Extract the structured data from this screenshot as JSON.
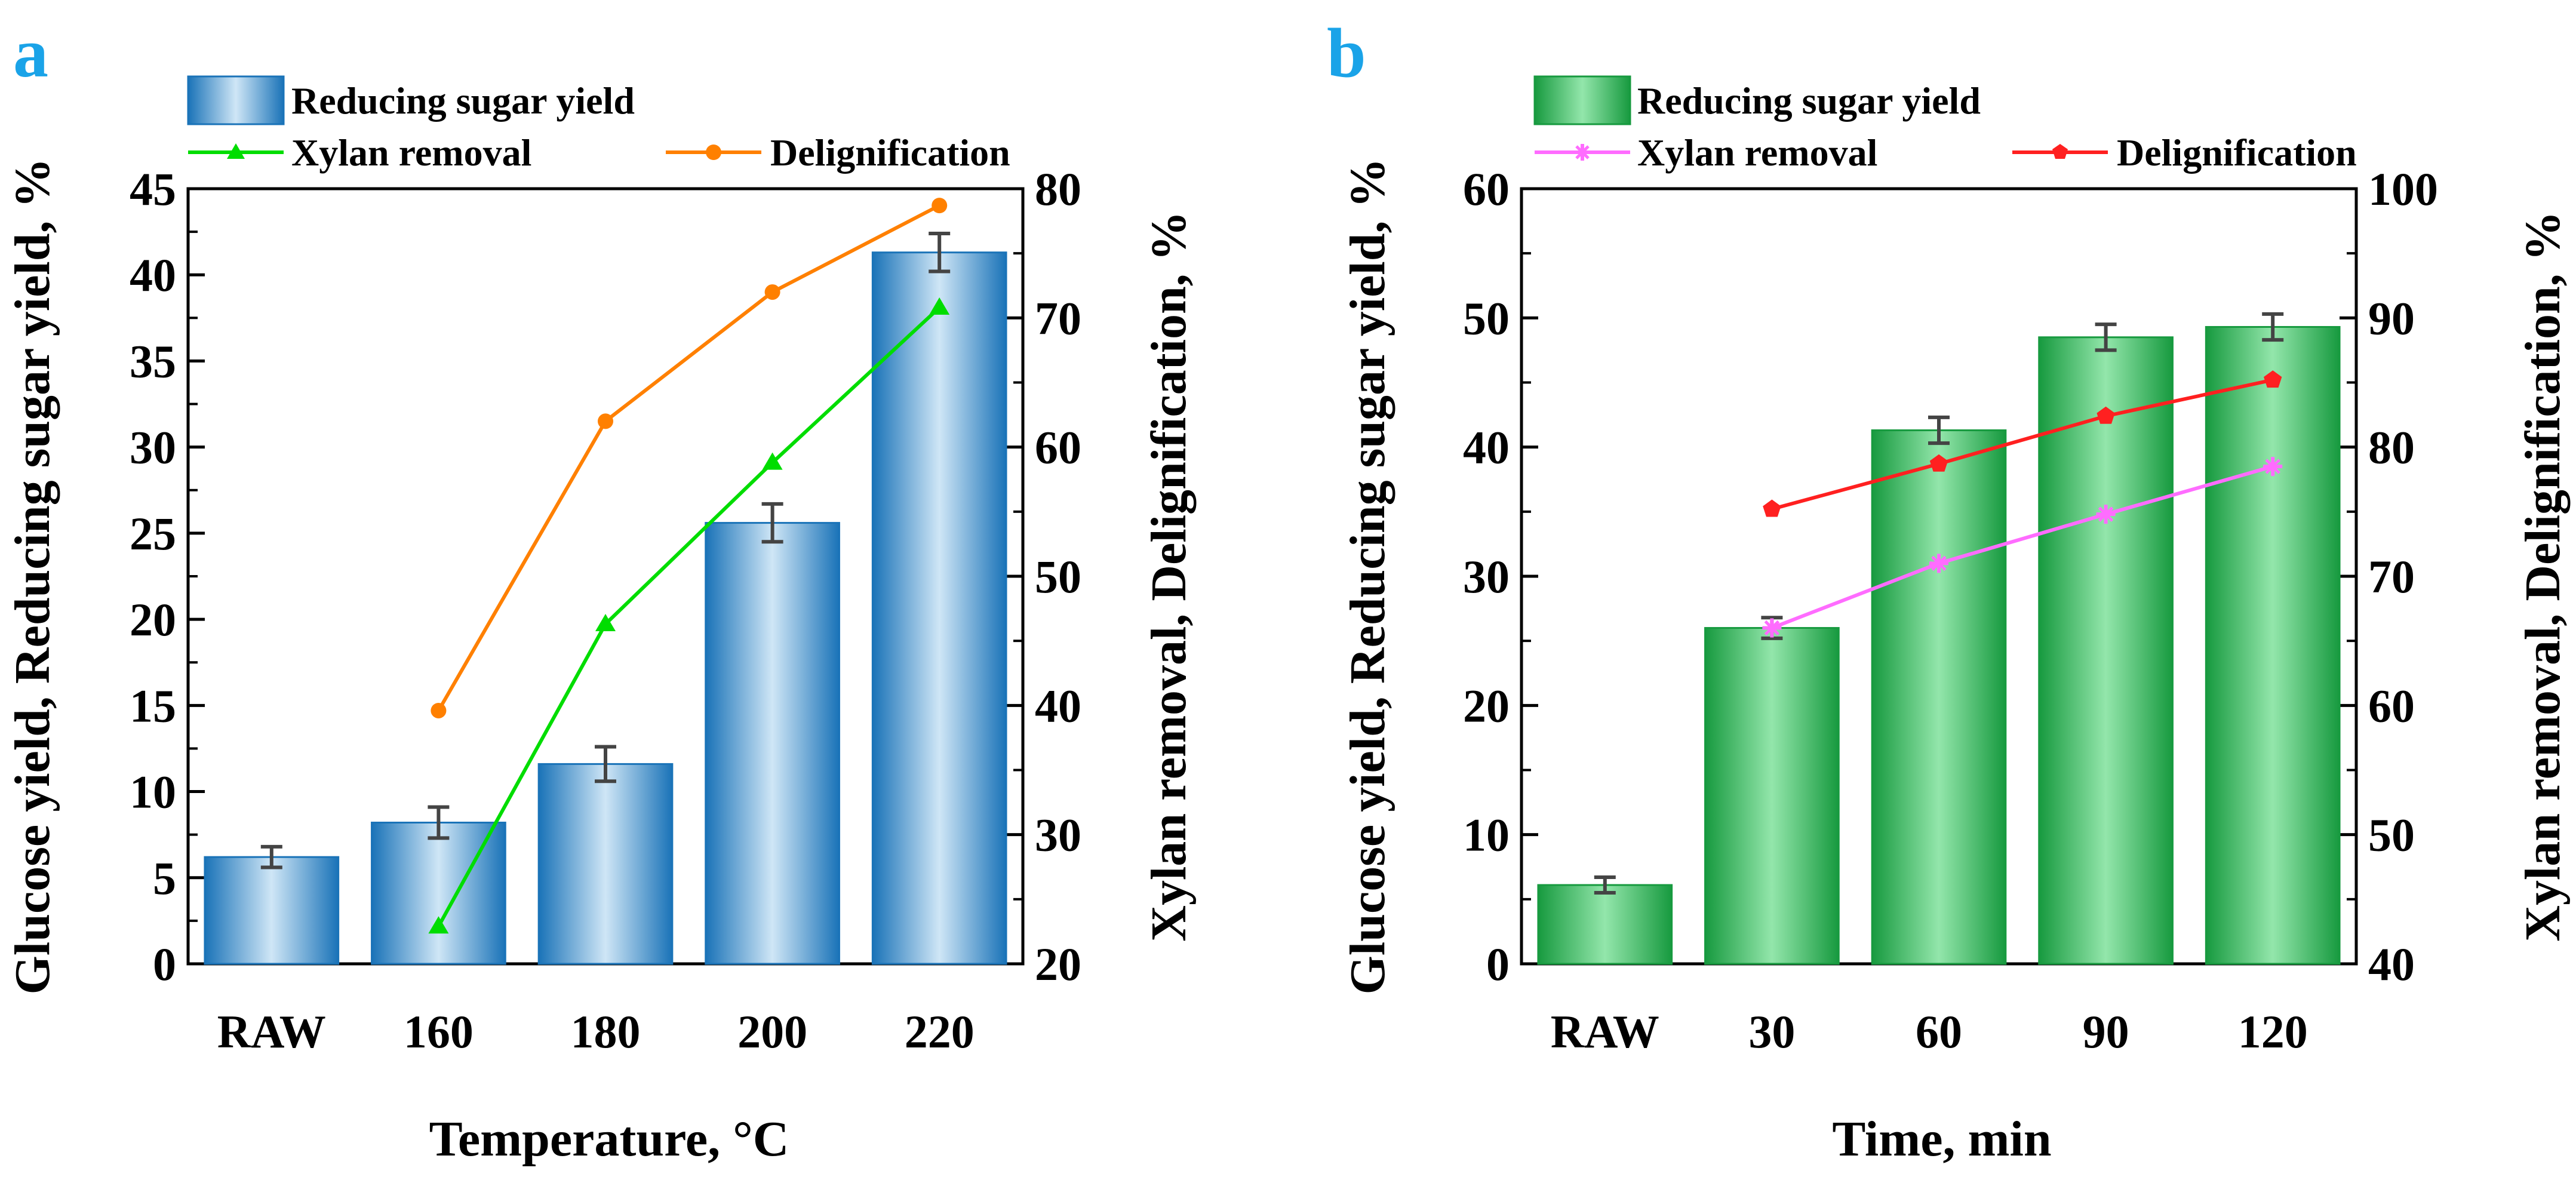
{
  "chart_data": [
    {
      "panel": "a",
      "type": "bar",
      "categories": [
        "RAW",
        "160",
        "180",
        "200",
        "220"
      ],
      "xlabel": "Temperature, °C",
      "ylabel_left": "Glucose yield, Reducing sugar yield, %",
      "ylabel_right": "Xylan removal, Delignification, %",
      "ylim_left": [
        0,
        45
      ],
      "yticks_left": [
        0,
        5,
        10,
        15,
        20,
        25,
        30,
        35,
        40,
        45
      ],
      "ylim_right": [
        20,
        80
      ],
      "yticks_right": [
        20,
        30,
        40,
        50,
        60,
        70,
        80
      ],
      "legend_placement": "top",
      "series": [
        {
          "name": "Reducing sugar yield",
          "kind": "bar",
          "axis": "left",
          "values": [
            6.2,
            8.2,
            11.6,
            25.6,
            41.3
          ],
          "errors": [
            0.6,
            0.9,
            1.0,
            1.1,
            1.1
          ],
          "color": "#1a73b8"
        },
        {
          "name": "Xylan removal",
          "kind": "line",
          "axis": "right",
          "values": [
            null,
            22.9,
            46.3,
            58.8,
            70.8
          ],
          "color": "#00dd00",
          "marker": "triangle"
        },
        {
          "name": "Delignification",
          "kind": "line",
          "axis": "right",
          "values": [
            null,
            39.6,
            62.0,
            72.0,
            78.7
          ],
          "color": "#ff8000",
          "marker": "circle"
        }
      ]
    },
    {
      "panel": "b",
      "type": "bar",
      "categories": [
        "RAW",
        "30",
        "60",
        "90",
        "120"
      ],
      "xlabel": "Time, min",
      "ylabel_left": "Glucose yield, Reducing sugar yield, %",
      "ylabel_right": "Xylan removal, Delignification, %",
      "ylim_left": [
        0,
        60
      ],
      "yticks_left": [
        0,
        10,
        20,
        30,
        40,
        50,
        60
      ],
      "ylim_right": [
        40,
        100
      ],
      "yticks_right": [
        40,
        50,
        60,
        70,
        80,
        90,
        100
      ],
      "legend_placement": "top",
      "series": [
        {
          "name": "Reducing sugar yield",
          "kind": "bar",
          "axis": "left",
          "values": [
            6.1,
            26.0,
            41.3,
            48.5,
            49.3
          ],
          "errors": [
            0.6,
            0.8,
            1.0,
            1.0,
            1.0
          ],
          "color": "#179a3f"
        },
        {
          "name": "Xylan removal",
          "kind": "line",
          "axis": "right",
          "values": [
            null,
            66.0,
            71.0,
            74.8,
            78.5
          ],
          "color": "#ff6cff",
          "marker": "star"
        },
        {
          "name": "Delignification",
          "kind": "line",
          "axis": "right",
          "values": [
            null,
            75.2,
            78.7,
            82.4,
            85.2
          ],
          "color": "#ff2020",
          "marker": "pentagon"
        }
      ]
    }
  ]
}
